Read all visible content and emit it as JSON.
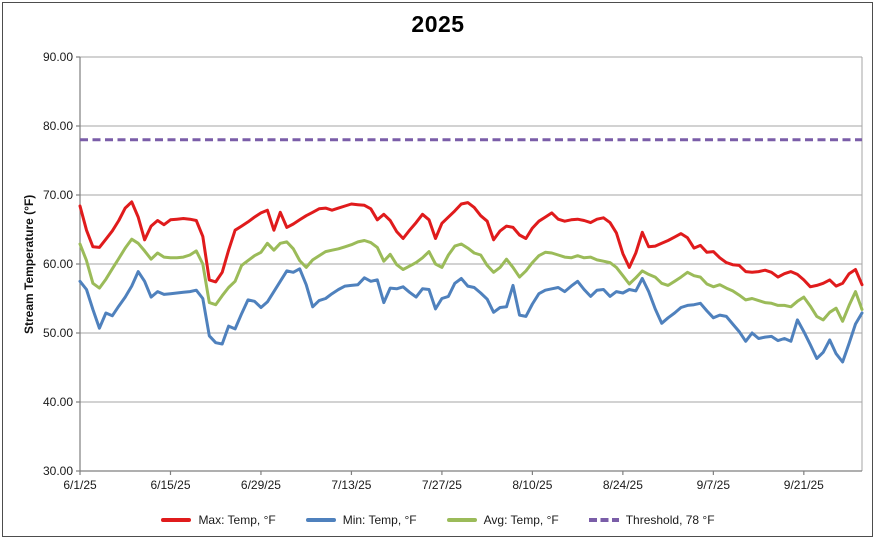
{
  "chart_data": {
    "type": "line",
    "title": "2025",
    "ylabel": "Stream Temperature (°F)",
    "ylim": [
      30,
      90
    ],
    "grid": true,
    "legend_position": "bottom",
    "y_tick_values": [
      90,
      80,
      70,
      60,
      50,
      40,
      30
    ],
    "y_tick_labels": [
      "90.00",
      "80.00",
      "70.00",
      "60.00",
      "50.00",
      "40.00",
      "30.00"
    ],
    "x_tick_labels": [
      "6/1/25",
      "6/15/25",
      "6/29/25",
      "7/13/25",
      "7/27/25",
      "8/10/25",
      "8/24/25",
      "9/7/25",
      "9/21/25"
    ],
    "x_tick_days": [
      0,
      14,
      28,
      42,
      56,
      70,
      84,
      98,
      112
    ],
    "days_total": 121,
    "colors": {
      "grid": "#a6a6a6",
      "axis": "#7f7f7f",
      "text": "#1a1a1a",
      "title": "#000000"
    },
    "threshold_value": 78,
    "series": [
      {
        "key": "max",
        "name": "Max: Temp, °F",
        "color": "#e01b1c",
        "style": "solid",
        "values": [
          68.4,
          64.9,
          62.5,
          62.4,
          63.6,
          64.8,
          66.3,
          68.1,
          69.0,
          66.8,
          63.5,
          65.5,
          66.3,
          65.7,
          66.4,
          66.5,
          66.6,
          66.5,
          66.3,
          64.0,
          57.7,
          57.4,
          58.8,
          62.0,
          64.9,
          65.5,
          66.1,
          66.8,
          67.4,
          67.8,
          64.9,
          67.5,
          65.3,
          65.8,
          66.4,
          67.0,
          67.5,
          68.0,
          68.1,
          67.8,
          68.1,
          68.4,
          68.7,
          68.6,
          68.5,
          68.0,
          66.4,
          67.2,
          66.3,
          64.7,
          63.7,
          64.9,
          66.0,
          67.2,
          66.4,
          63.7,
          65.9,
          66.8,
          67.7,
          68.7,
          68.9,
          68.2,
          67.0,
          66.2,
          63.5,
          64.8,
          65.5,
          65.3,
          64.2,
          63.7,
          65.2,
          66.2,
          66.8,
          67.4,
          66.5,
          66.2,
          66.4,
          66.5,
          66.3,
          66.0,
          66.5,
          66.7,
          66.0,
          64.5,
          61.5,
          59.5,
          61.6,
          64.6,
          62.5,
          62.6,
          63.0,
          63.4,
          63.9,
          64.4,
          63.8,
          62.3,
          62.7,
          61.7,
          61.8,
          60.9,
          60.2,
          59.9,
          59.8,
          58.9,
          58.8,
          58.9,
          59.1,
          58.8,
          58.1,
          58.6,
          58.9,
          58.5,
          57.7,
          56.7,
          56.9,
          57.2,
          57.7,
          56.8,
          57.2,
          58.6,
          59.2,
          57.0
        ]
      },
      {
        "key": "min",
        "name": "Min: Temp, °F",
        "color": "#4f81bd",
        "style": "solid",
        "values": [
          57.5,
          56.3,
          53.4,
          50.7,
          52.9,
          52.5,
          53.9,
          55.2,
          56.8,
          58.9,
          57.5,
          55.2,
          56.0,
          55.6,
          55.7,
          55.8,
          55.9,
          56.0,
          56.2,
          55.0,
          49.6,
          48.6,
          48.4,
          51.0,
          50.6,
          52.8,
          54.8,
          54.6,
          53.7,
          54.5,
          56.0,
          57.5,
          59.0,
          58.8,
          59.3,
          57.0,
          53.8,
          54.7,
          55.0,
          55.7,
          56.3,
          56.8,
          56.9,
          57.0,
          58.0,
          57.5,
          57.7,
          54.4,
          56.5,
          56.4,
          56.7,
          55.9,
          55.2,
          56.4,
          56.3,
          53.5,
          55.0,
          55.3,
          57.2,
          57.9,
          56.8,
          56.6,
          55.8,
          54.9,
          53.0,
          53.7,
          53.8,
          56.9,
          52.6,
          52.4,
          54.2,
          55.7,
          56.2,
          56.4,
          56.6,
          56.0,
          56.8,
          57.5,
          56.3,
          55.3,
          56.2,
          56.3,
          55.3,
          56.0,
          55.8,
          56.3,
          56.1,
          57.9,
          56.0,
          53.5,
          51.4,
          52.2,
          52.9,
          53.7,
          54.0,
          54.1,
          54.3,
          53.2,
          52.2,
          52.6,
          52.4,
          51.3,
          50.2,
          48.8,
          50.0,
          49.2,
          49.4,
          49.5,
          48.9,
          49.2,
          48.8,
          51.9,
          50.2,
          48.3,
          46.3,
          47.2,
          49.0,
          47.0,
          45.8,
          48.5,
          51.3,
          52.9
        ]
      },
      {
        "key": "avg",
        "name": "Avg: Temp, °F",
        "color": "#9bbb59",
        "style": "solid",
        "values": [
          62.9,
          60.5,
          57.2,
          56.5,
          57.8,
          59.3,
          60.8,
          62.3,
          63.6,
          63.0,
          61.9,
          60.7,
          61.6,
          61.0,
          60.9,
          60.9,
          61.0,
          61.3,
          61.9,
          60.0,
          54.4,
          54.1,
          55.4,
          56.6,
          57.5,
          59.8,
          60.5,
          61.2,
          61.7,
          63.0,
          62.0,
          63.0,
          63.2,
          62.2,
          60.5,
          59.5,
          60.6,
          61.2,
          61.8,
          62.0,
          62.2,
          62.5,
          62.8,
          63.2,
          63.4,
          63.1,
          62.4,
          60.4,
          61.4,
          59.9,
          59.2,
          59.7,
          60.2,
          60.9,
          61.8,
          60.0,
          59.5,
          61.3,
          62.6,
          62.9,
          62.3,
          61.6,
          61.3,
          59.8,
          58.8,
          59.5,
          60.7,
          59.5,
          58.1,
          59.0,
          60.2,
          61.2,
          61.7,
          61.6,
          61.3,
          61.0,
          60.9,
          61.2,
          60.9,
          61.0,
          60.6,
          60.4,
          60.2,
          59.5,
          58.3,
          57.1,
          58.0,
          59.0,
          58.5,
          58.1,
          57.2,
          56.9,
          57.5,
          58.1,
          58.8,
          58.3,
          58.1,
          57.1,
          56.7,
          57.0,
          56.5,
          56.1,
          55.5,
          54.8,
          55.0,
          54.7,
          54.4,
          54.3,
          54.0,
          54.0,
          53.8,
          54.6,
          55.2,
          53.9,
          52.4,
          51.9,
          53.0,
          53.6,
          51.7,
          54.0,
          56.0,
          53.4
        ]
      },
      {
        "key": "threshold",
        "name": "Threshold, 78 °F",
        "color": "#7a5da8",
        "style": "dashed",
        "constant": 78
      }
    ]
  }
}
